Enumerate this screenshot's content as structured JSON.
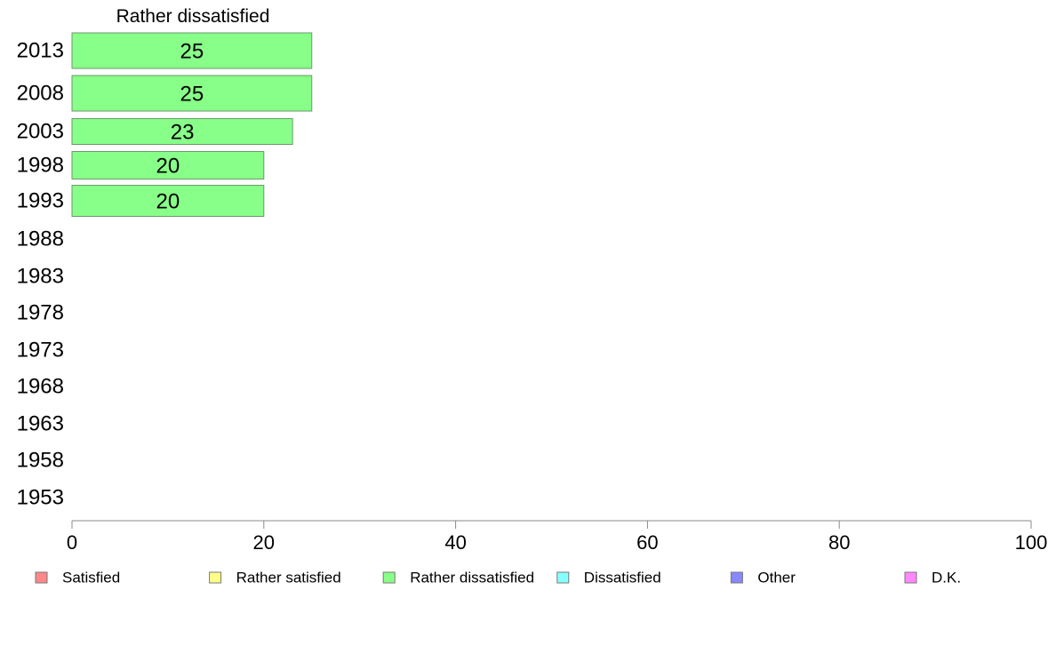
{
  "chart_data": {
    "type": "bar",
    "orientation": "horizontal",
    "title": "Rather dissatisfied",
    "categories": [
      "2013",
      "2008",
      "2003",
      "1998",
      "1993",
      "1988",
      "1983",
      "1978",
      "1973",
      "1968",
      "1963",
      "1958",
      "1953"
    ],
    "series": [
      {
        "name": "Rather dissatisfied",
        "color": "#88ff88",
        "values": [
          25,
          25,
          23,
          20,
          20,
          null,
          null,
          null,
          null,
          null,
          null,
          null,
          null
        ],
        "labels": [
          "25",
          "25",
          "23",
          "20",
          "20",
          "",
          "",
          "",
          "",
          "",
          "",
          "",
          ""
        ]
      }
    ],
    "xlim": [
      0,
      100
    ],
    "xticks": [
      0,
      20,
      40,
      60,
      80,
      100
    ],
    "xtick_labels": [
      "0",
      "20",
      "40",
      "60",
      "80",
      "100"
    ],
    "grid": false,
    "legend_position": "bottom",
    "legend": [
      {
        "label": "Satisfied",
        "color": "#ff8888"
      },
      {
        "label": "Rather satisfied",
        "color": "#ffff88"
      },
      {
        "label": "Rather dissatisfied",
        "color": "#88ff88"
      },
      {
        "label": "Dissatisfied",
        "color": "#88ffff"
      },
      {
        "label": "Other",
        "color": "#8888ff"
      },
      {
        "label": "D.K.",
        "color": "#ff88ff"
      }
    ]
  }
}
